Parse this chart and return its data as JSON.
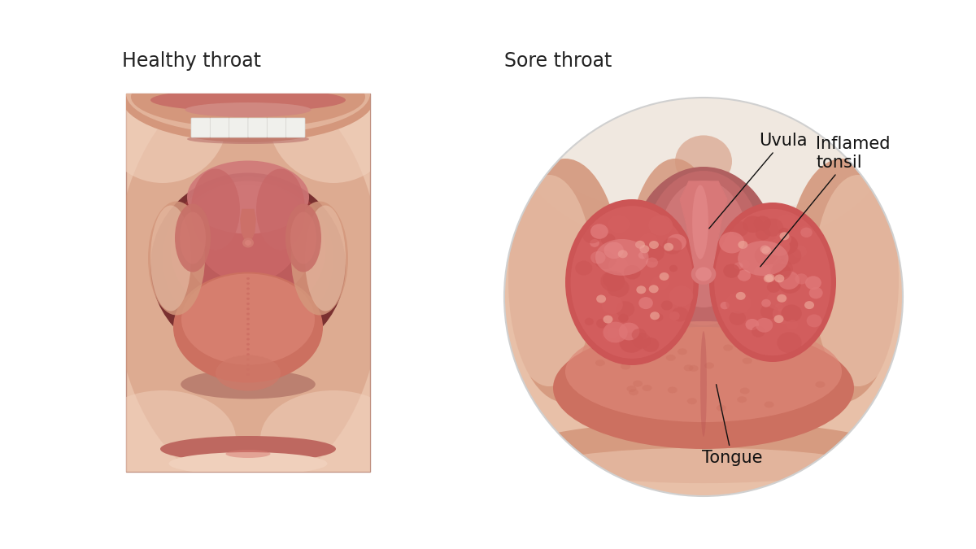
{
  "bg_color": "#ffffff",
  "title_left": "Healthy throat",
  "title_right": "Sore throat",
  "title_fontsize": 17,
  "label_fontsize": 15,
  "labels": {
    "uvula": "Uvula",
    "tonsil": "Inflamed\ntonsil",
    "tongue": "Tongue"
  },
  "skin_base": "#d4977c",
  "skin_light": "#e8c0a8",
  "skin_lighter": "#f0d0bc",
  "skin_dark": "#c07060",
  "throat_bg": "#b06060",
  "throat_mid": "#c06868",
  "throat_inner": "#d07878",
  "tonsil_base": "#cc5555",
  "tonsil_mid": "#d46060",
  "tonsil_light": "#e07878",
  "tonsil_highlight": "#e89090",
  "uvula_color": "#d87878",
  "uvula_light": "#e89090",
  "tongue_base": "#cc7060",
  "tongue_light": "#dd8878",
  "teeth_color": "#f0f0ec",
  "teeth_shadow": "#e0e0dc",
  "palate_top": "#ebe0d8",
  "palate_mid": "#dcc8b8",
  "lip_upper": "#c87068",
  "lip_lower": "#be6860"
}
